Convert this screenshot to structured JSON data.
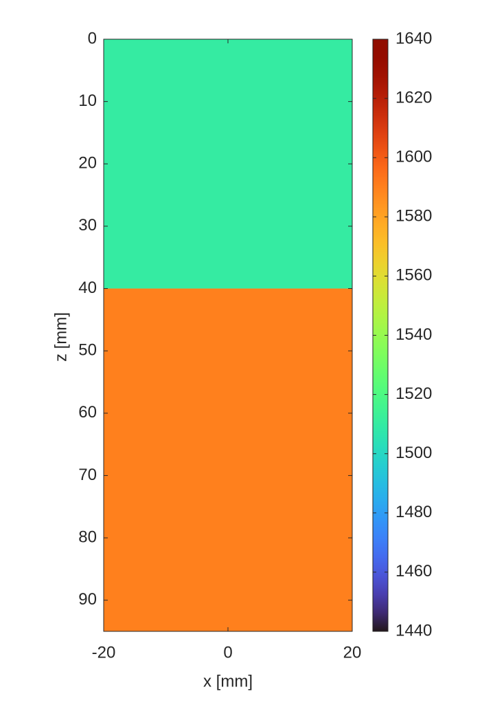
{
  "chart_data": {
    "type": "heatmap",
    "xlabel": "x [mm]",
    "ylabel": "z [mm]",
    "xlim": [
      -20,
      20
    ],
    "xticks": [
      -20,
      0,
      20
    ],
    "ylim": [
      0,
      95
    ],
    "yticks": [
      0,
      10,
      20,
      30,
      40,
      50,
      60,
      70,
      80,
      90
    ],
    "y_reversed": true,
    "z_edges": [
      0,
      40,
      95
    ],
    "values": [
      1510,
      1590
    ],
    "colormap": "turbo",
    "clim": [
      1440,
      1640
    ],
    "cticks": [
      1440,
      1460,
      1480,
      1500,
      1520,
      1540,
      1560,
      1580,
      1600,
      1620,
      1640
    ]
  }
}
